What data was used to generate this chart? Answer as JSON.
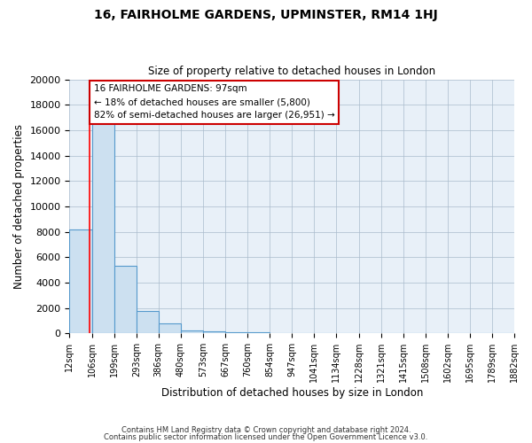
{
  "title": "16, FAIRHOLME GARDENS, UPMINSTER, RM14 1HJ",
  "subtitle": "Size of property relative to detached houses in London",
  "xlabel": "Distribution of detached houses by size in London",
  "ylabel": "Number of detached properties",
  "bin_labels": [
    "12sqm",
    "106sqm",
    "199sqm",
    "293sqm",
    "386sqm",
    "480sqm",
    "573sqm",
    "667sqm",
    "760sqm",
    "854sqm",
    "947sqm",
    "1041sqm",
    "1134sqm",
    "1228sqm",
    "1321sqm",
    "1415sqm",
    "1508sqm",
    "1602sqm",
    "1695sqm",
    "1789sqm",
    "1882sqm"
  ],
  "bar_heights": [
    8200,
    16600,
    5300,
    1750,
    750,
    220,
    160,
    110,
    80,
    0,
    0,
    0,
    0,
    0,
    0,
    0,
    0,
    0,
    0,
    0
  ],
  "bar_color": "#cce0f0",
  "bar_edge_color": "#5599cc",
  "annotation_title": "16 FAIRHOLME GARDENS: 97sqm",
  "annotation_line1": "← 18% of detached houses are smaller (5,800)",
  "annotation_line2": "82% of semi-detached houses are larger (26,951) →",
  "annotation_box_edge": "#cc0000",
  "property_size": 97,
  "ylim": [
    0,
    20000
  ],
  "yticks": [
    0,
    2000,
    4000,
    6000,
    8000,
    10000,
    12000,
    14000,
    16000,
    18000,
    20000
  ],
  "bin_edges_sqm": [
    12,
    106,
    199,
    293,
    386,
    480,
    573,
    667,
    760,
    854,
    947,
    1041,
    1134,
    1228,
    1321,
    1415,
    1508,
    1602,
    1695,
    1789,
    1882
  ],
  "footer_line1": "Contains HM Land Registry data © Crown copyright and database right 2024.",
  "footer_line2": "Contains public sector information licensed under the Open Government Licence v3.0.",
  "fig_bg_color": "#ffffff",
  "plot_bg_color": "#e8f0f8"
}
